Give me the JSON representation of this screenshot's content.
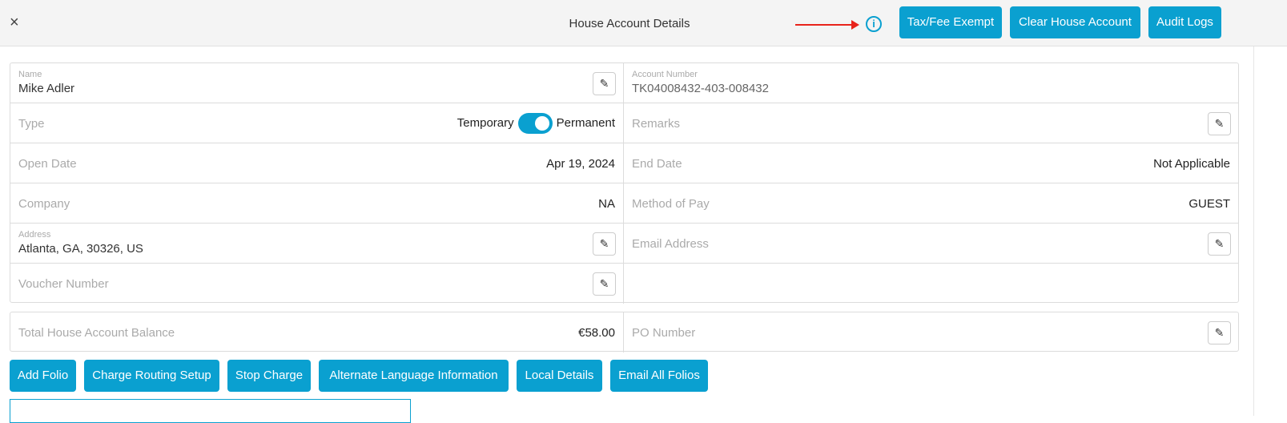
{
  "header": {
    "title": "House Account Details",
    "close_icon": "close-icon",
    "info_icon": "info-icon",
    "buttons": [
      "Tax/Fee Exempt",
      "Clear House Account",
      "Audit Logs"
    ]
  },
  "fields": {
    "name": {
      "label": "Name",
      "value": "Mike Adler"
    },
    "account_number": {
      "label": "Account Number",
      "value": "TK04008432-403-008432"
    },
    "type": {
      "label": "Type",
      "left": "Temporary",
      "right": "Permanent",
      "toggle_on": true
    },
    "remarks": {
      "label": "Remarks"
    },
    "open_date": {
      "label": "Open Date",
      "value": "Apr 19, 2024"
    },
    "end_date": {
      "label": "End Date",
      "value": "Not Applicable"
    },
    "company": {
      "label": "Company",
      "value": "NA"
    },
    "method_of_pay": {
      "label": "Method of Pay",
      "value": "GUEST"
    },
    "address": {
      "label": "Address",
      "value": "Atlanta, GA, 30326, US"
    },
    "email": {
      "label": "Email Address"
    },
    "voucher": {
      "label": "Voucher Number"
    }
  },
  "balance": {
    "label": "Total House Account Balance",
    "value": "€58.00",
    "po_label": "PO Number"
  },
  "actions": [
    "Add Folio",
    "Charge Routing Setup",
    "Stop Charge",
    "Alternate Language Information",
    "Local Details",
    "Email All Folios"
  ],
  "colors": {
    "accent": "#0aa0d0",
    "annotation_arrow": "#e8231b"
  }
}
